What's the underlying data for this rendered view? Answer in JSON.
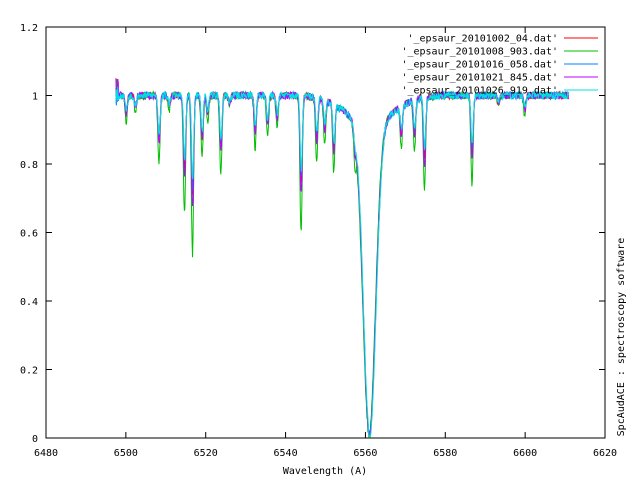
{
  "chart_data": {
    "type": "line",
    "title": "",
    "xlabel": "Wavelength (A)",
    "ylabel": "",
    "xlim": [
      6480,
      6620
    ],
    "ylim": [
      0,
      1.2
    ],
    "xticks": [
      6480,
      6500,
      6520,
      6540,
      6560,
      6580,
      6600,
      6620
    ],
    "yticks": [
      0,
      0.2,
      0.4,
      0.6,
      0.8,
      1,
      1.2
    ],
    "grid": false,
    "legend_position": "top-right",
    "side_label": "SpcAudACE : spectroscopy software",
    "x_range_data": [
      6497.5,
      6611
    ],
    "absorption_lines": [
      {
        "x": 6500.1,
        "depth": 0.05
      },
      {
        "x": 6502.4,
        "depth": 0.03
      },
      {
        "x": 6508.3,
        "depth": 0.13
      },
      {
        "x": 6510.8,
        "depth": 0.03
      },
      {
        "x": 6514.7,
        "depth": 0.22
      },
      {
        "x": 6516.7,
        "depth": 0.3
      },
      {
        "x": 6519.1,
        "depth": 0.12
      },
      {
        "x": 6520.5,
        "depth": 0.05
      },
      {
        "x": 6523.8,
        "depth": 0.15
      },
      {
        "x": 6526.0,
        "depth": 0.02
      },
      {
        "x": 6532.4,
        "depth": 0.1
      },
      {
        "x": 6535.5,
        "depth": 0.08
      },
      {
        "x": 6537.9,
        "depth": 0.06
      },
      {
        "x": 6543.9,
        "depth": 0.26
      },
      {
        "x": 6547.8,
        "depth": 0.12
      },
      {
        "x": 6549.8,
        "depth": 0.08
      },
      {
        "x": 6552.1,
        "depth": 0.13
      },
      {
        "x": 6557.4,
        "depth": 0.05
      },
      {
        "x": 6569.0,
        "depth": 0.08
      },
      {
        "x": 6572.3,
        "depth": 0.1
      },
      {
        "x": 6574.8,
        "depth": 0.18
      },
      {
        "x": 6586.7,
        "depth": 0.17
      },
      {
        "x": 6593.3,
        "depth": 0.02
      },
      {
        "x": 6599.9,
        "depth": 0.04
      }
    ],
    "halpha": {
      "center": 6561.0,
      "min_value": 0.09
    },
    "series": [
      {
        "name": "'_epsaur_20101002_04.dat'",
        "color": "#ff0000",
        "shift": 0.0,
        "scale": 1.0,
        "seed": 11
      },
      {
        "name": "'_epsaur_20101008_903.dat'",
        "color": "#00c000",
        "shift": -0.4,
        "scale": 1.55,
        "seed": 23
      },
      {
        "name": "'_epsaur_20101016_058.dat'",
        "color": "#0080ff",
        "shift": 0.3,
        "scale": 0.9,
        "seed": 37
      },
      {
        "name": "'_epsaur_20101021_845.dat'",
        "color": "#c000ff",
        "shift": 0.1,
        "scale": 1.1,
        "seed": 41
      },
      {
        "name": "'_epsaur_20101026_919.dat'",
        "color": "#00e0e0",
        "shift": 0.5,
        "scale": 0.85,
        "seed": 53
      }
    ]
  }
}
